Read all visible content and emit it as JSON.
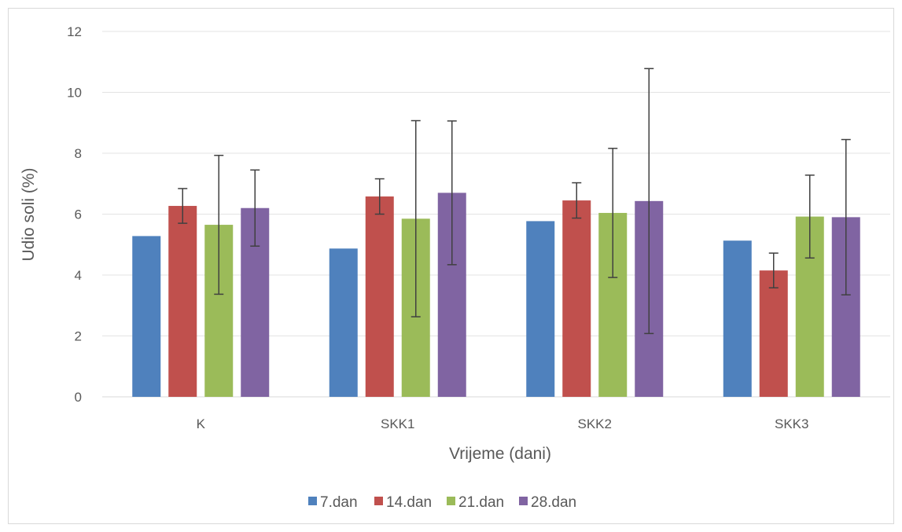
{
  "chart_data": {
    "type": "bar",
    "title": "",
    "xlabel": "Vrijeme (dani)",
    "ylabel": "Udio soli (%)",
    "ylim": [
      0,
      12
    ],
    "yticks": [
      0,
      2,
      4,
      6,
      8,
      10,
      12
    ],
    "grid": true,
    "legend_position": "bottom",
    "categories": [
      "K",
      "SKK1",
      "SKK2",
      "SKK3"
    ],
    "series": [
      {
        "name": "7.dan",
        "color": "#4F81BD",
        "values": [
          5.28,
          4.87,
          5.77,
          5.13
        ],
        "error": [
          null,
          null,
          null,
          null
        ]
      },
      {
        "name": "14.dan",
        "color": "#C0504D",
        "values": [
          6.27,
          6.58,
          6.45,
          4.15
        ],
        "error": [
          0.57,
          0.58,
          0.58,
          0.57
        ]
      },
      {
        "name": "21.dan",
        "color": "#9BBB59",
        "values": [
          5.65,
          5.85,
          6.04,
          5.92
        ],
        "error": [
          2.28,
          3.22,
          2.12,
          1.36
        ]
      },
      {
        "name": "28.dan",
        "color": "#8064A2",
        "values": [
          6.2,
          6.7,
          6.43,
          5.9
        ],
        "error": [
          1.25,
          2.36,
          4.35,
          2.55
        ]
      }
    ]
  }
}
